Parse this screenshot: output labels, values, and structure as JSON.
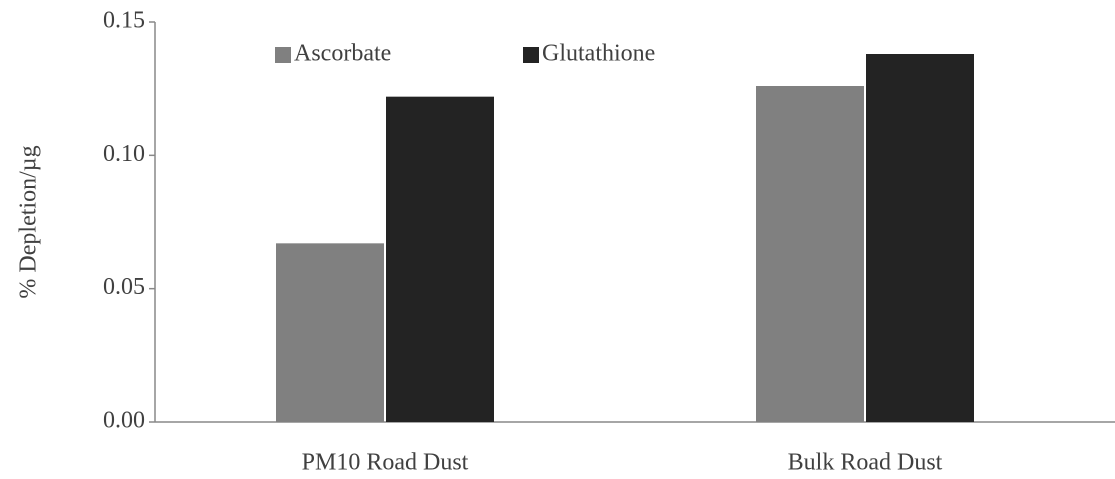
{
  "chart_data": {
    "type": "bar",
    "y_label": "% Depletion/µg",
    "categories": [
      "PM10 Road Dust",
      "Bulk Road Dust"
    ],
    "series": [
      {
        "name": "Ascorbate",
        "color": "#808080",
        "values": [
          0.067,
          0.126
        ]
      },
      {
        "name": "Glutathione",
        "color": "#232323",
        "values": [
          0.122,
          0.138
        ]
      }
    ],
    "ylim": [
      0,
      0.15
    ],
    "yticks": [
      {
        "value": 0,
        "label": "0.00"
      },
      0.05,
      {
        "value": 0.1,
        "label": "0.10"
      },
      0.15
    ],
    "grid": false,
    "legend": "top"
  }
}
